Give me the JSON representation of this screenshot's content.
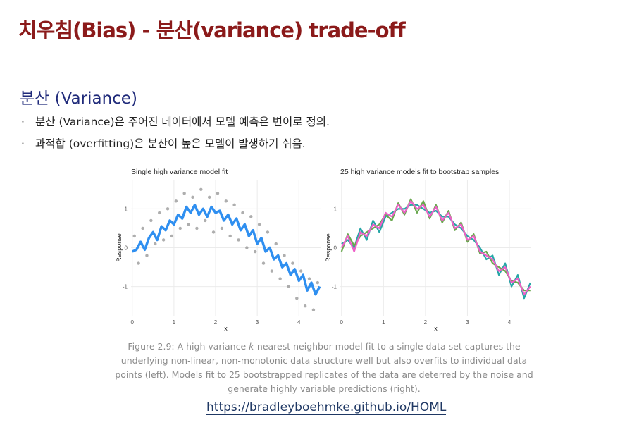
{
  "header": {
    "title": "치우침(Bias) - 분산(variance) trade-off"
  },
  "section": {
    "heading": "분산 (Variance)",
    "bullets": [
      "분산 (Variance)은 주어진 데이터에서 모델 예측은 변이로 정의.",
      "과적합 (overfitting)은 분산이 높은 모델이 발생하기 쉬움."
    ]
  },
  "chart_data": [
    {
      "type": "scatter",
      "title": "Single high variance model fit",
      "x_label": "x",
      "y_label": "Response",
      "xlim": [
        -0.03,
        4.52
      ],
      "ylim": [
        -1.75,
        1.75
      ],
      "xticks": [
        0,
        1,
        2,
        3,
        4
      ],
      "yticks": [
        -1,
        0,
        1
      ],
      "grid": true,
      "series": [
        {
          "mark": "point",
          "color": "#9a9a9a",
          "x": [
            0.05,
            0.15,
            0.25,
            0.35,
            0.45,
            0.55,
            0.65,
            0.75,
            0.85,
            0.95,
            1.05,
            1.15,
            1.25,
            1.35,
            1.45,
            1.55,
            1.65,
            1.75,
            1.85,
            1.95,
            2.05,
            2.15,
            2.25,
            2.35,
            2.45,
            2.55,
            2.65,
            2.75,
            2.85,
            2.95,
            3.05,
            3.15,
            3.25,
            3.35,
            3.45,
            3.55,
            3.65,
            3.75,
            3.85,
            3.95,
            4.05,
            4.15,
            4.25,
            4.35,
            4.45
          ],
          "values": [
            0.3,
            -0.4,
            0.5,
            -0.2,
            0.7,
            0.1,
            0.9,
            0.2,
            1.0,
            0.3,
            1.2,
            0.5,
            1.4,
            0.6,
            1.3,
            0.5,
            1.5,
            0.7,
            1.3,
            0.4,
            1.4,
            0.5,
            1.2,
            0.3,
            1.1,
            0.2,
            0.9,
            0.0,
            0.8,
            -0.1,
            0.6,
            -0.4,
            0.4,
            -0.6,
            0.1,
            -0.8,
            -0.2,
            -1.0,
            -0.4,
            -1.3,
            -0.6,
            -1.5,
            -0.8,
            -1.6,
            -0.9
          ]
        },
        {
          "mark": "line",
          "color": "#2f8ff0",
          "x": [
            0,
            0.1,
            0.2,
            0.3,
            0.4,
            0.5,
            0.6,
            0.7,
            0.8,
            0.9,
            1.0,
            1.1,
            1.2,
            1.3,
            1.4,
            1.5,
            1.6,
            1.7,
            1.8,
            1.9,
            2.0,
            2.1,
            2.2,
            2.3,
            2.4,
            2.5,
            2.6,
            2.7,
            2.8,
            2.9,
            3.0,
            3.1,
            3.2,
            3.3,
            3.4,
            3.5,
            3.6,
            3.7,
            3.8,
            3.9,
            4.0,
            4.1,
            4.2,
            4.3,
            4.4,
            4.5
          ],
          "values": [
            -0.1,
            -0.05,
            0.15,
            -0.05,
            0.25,
            0.4,
            0.2,
            0.55,
            0.45,
            0.7,
            0.6,
            0.85,
            0.75,
            1.05,
            0.9,
            1.1,
            0.85,
            1.0,
            0.8,
            1.05,
            0.9,
            0.95,
            0.7,
            0.85,
            0.6,
            0.75,
            0.45,
            0.6,
            0.3,
            0.45,
            0.1,
            0.25,
            -0.1,
            0.0,
            -0.3,
            -0.2,
            -0.5,
            -0.4,
            -0.7,
            -0.55,
            -0.85,
            -0.7,
            -1.1,
            -0.9,
            -1.2,
            -1.0
          ]
        }
      ]
    },
    {
      "type": "line",
      "title": "25 high variance models fit to bootstrap samples",
      "x_label": "x",
      "y_label": "Response",
      "xlim": [
        -0.03,
        4.52
      ],
      "ylim": [
        -1.75,
        1.75
      ],
      "xticks": [
        0,
        1,
        2,
        3,
        4
      ],
      "yticks": [
        -1,
        0,
        1
      ],
      "grid": true,
      "x": [
        0,
        0.15,
        0.3,
        0.45,
        0.6,
        0.75,
        0.9,
        1.05,
        1.2,
        1.35,
        1.5,
        1.65,
        1.8,
        1.95,
        2.1,
        2.25,
        2.4,
        2.55,
        2.7,
        2.85,
        3.0,
        3.15,
        3.3,
        3.45,
        3.6,
        3.75,
        3.9,
        4.05,
        4.2,
        4.35,
        4.5
      ],
      "series": [
        {
          "color": "#26a6a6",
          "values": [
            0.1,
            0.2,
            0.0,
            0.5,
            0.2,
            0.7,
            0.4,
            0.8,
            0.9,
            1.0,
            1.0,
            1.1,
            1.1,
            1.0,
            0.9,
            0.95,
            0.8,
            0.8,
            0.6,
            0.5,
            0.3,
            0.2,
            0.0,
            -0.3,
            -0.2,
            -0.7,
            -0.4,
            -1.0,
            -0.7,
            -1.3,
            -0.9
          ]
        },
        {
          "color": "#6aa84f",
          "values": [
            -0.1,
            0.35,
            0.05,
            0.3,
            0.4,
            0.5,
            0.6,
            0.85,
            0.7,
            1.15,
            0.85,
            1.25,
            0.9,
            1.2,
            0.75,
            1.1,
            0.65,
            0.95,
            0.45,
            0.65,
            0.15,
            0.35,
            -0.15,
            -0.1,
            -0.4,
            -0.5,
            -0.6,
            -0.85,
            -0.9,
            -1.1,
            -1.1
          ]
        },
        {
          "color": "#ee5fc8",
          "values": [
            0,
            0.3,
            -0.1,
            0.4,
            0.3,
            0.6,
            0.5,
            0.9,
            0.8,
            1.1,
            0.9,
            1.2,
            1.0,
            1.1,
            0.8,
            1.05,
            0.7,
            0.9,
            0.5,
            0.6,
            0.2,
            0.3,
            -0.1,
            -0.2,
            -0.3,
            -0.6,
            -0.5,
            -0.9,
            -0.8,
            -1.2,
            -1.0
          ]
        }
      ]
    }
  ],
  "figure": {
    "caption": [
      "Figure 2.9: A high variance ",
      "k",
      "-nearest neighbor model fit to a single data set captures the underlying non-linear, non-monotonic data structure well but also overfits to individual data points (left). Models fit to 25 bootstrapped replicates of the data are deterred by the noise and generate highly variable predictions (right)."
    ],
    "link": "https://bradleyboehmke.github.io/HOML"
  }
}
